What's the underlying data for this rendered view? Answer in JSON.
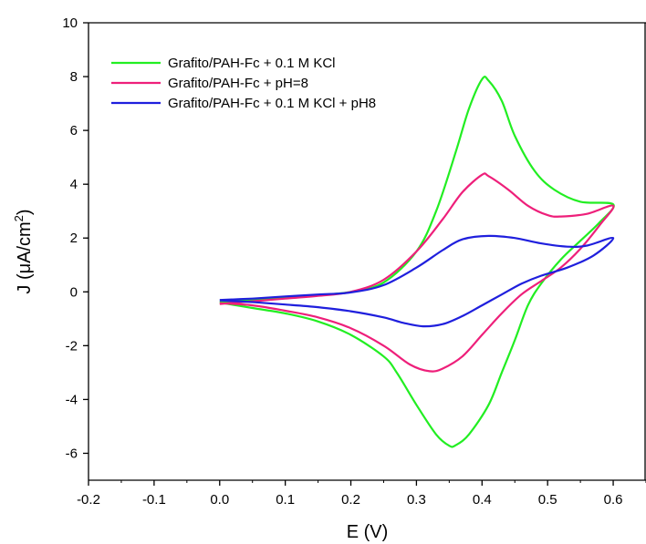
{
  "chart_data": {
    "type": "line",
    "title": "",
    "xlabel": "E (V)",
    "ylabel": {
      "main": "J (μA/cm",
      "sup": "2",
      "close": ")"
    },
    "xlim": [
      -0.2,
      0.65
    ],
    "ylim": [
      -7,
      10
    ],
    "xticks": [
      {
        "value": -0.2,
        "label": "-0.2"
      },
      {
        "value": -0.1,
        "label": "-0.1"
      },
      {
        "value": 0.0,
        "label": "0.0"
      },
      {
        "value": 0.1,
        "label": "0.1"
      },
      {
        "value": 0.2,
        "label": "0.2"
      },
      {
        "value": 0.3,
        "label": "0.3"
      },
      {
        "value": 0.4,
        "label": "0.4"
      },
      {
        "value": 0.5,
        "label": "0.5"
      },
      {
        "value": 0.6,
        "label": "0.6"
      }
    ],
    "yticks": [
      {
        "value": -6,
        "label": "-6"
      },
      {
        "value": -4,
        "label": "-4"
      },
      {
        "value": -2,
        "label": "-2"
      },
      {
        "value": 0,
        "label": "0"
      },
      {
        "value": 2,
        "label": "2"
      },
      {
        "value": 4,
        "label": "4"
      },
      {
        "value": 6,
        "label": "6"
      },
      {
        "value": 8,
        "label": "8"
      },
      {
        "value": 10,
        "label": "10"
      }
    ],
    "grid": false,
    "legend_position": "top-left",
    "series": [
      {
        "name": "Grafito/PAH-Fc + 0.1 M KCl",
        "color": "#22ee22",
        "points": [
          [
            0.0,
            -0.38
          ],
          [
            0.05,
            -0.3
          ],
          [
            0.1,
            -0.2
          ],
          [
            0.15,
            -0.12
          ],
          [
            0.2,
            0.0
          ],
          [
            0.25,
            0.35
          ],
          [
            0.3,
            1.5
          ],
          [
            0.33,
            3.0
          ],
          [
            0.36,
            5.2
          ],
          [
            0.38,
            6.8
          ],
          [
            0.4,
            7.9
          ],
          [
            0.41,
            7.85
          ],
          [
            0.43,
            7.1
          ],
          [
            0.45,
            5.8
          ],
          [
            0.48,
            4.5
          ],
          [
            0.51,
            3.8
          ],
          [
            0.55,
            3.35
          ],
          [
            0.6,
            3.25
          ],
          [
            0.58,
            2.6
          ],
          [
            0.55,
            1.9
          ],
          [
            0.52,
            1.2
          ],
          [
            0.49,
            0.3
          ],
          [
            0.47,
            -0.5
          ],
          [
            0.45,
            -1.8
          ],
          [
            0.43,
            -3.0
          ],
          [
            0.41,
            -4.2
          ],
          [
            0.38,
            -5.3
          ],
          [
            0.36,
            -5.7
          ],
          [
            0.35,
            -5.72
          ],
          [
            0.33,
            -5.3
          ],
          [
            0.3,
            -4.2
          ],
          [
            0.27,
            -3.0
          ],
          [
            0.25,
            -2.4
          ],
          [
            0.2,
            -1.6
          ],
          [
            0.15,
            -1.1
          ],
          [
            0.1,
            -0.8
          ],
          [
            0.05,
            -0.6
          ],
          [
            0.0,
            -0.4
          ]
        ]
      },
      {
        "name": "Grafito/PAH-Fc + pH=8",
        "color": "#ee1f7a",
        "points": [
          [
            0.0,
            -0.45
          ],
          [
            0.05,
            -0.35
          ],
          [
            0.1,
            -0.25
          ],
          [
            0.15,
            -0.15
          ],
          [
            0.2,
            0.0
          ],
          [
            0.25,
            0.45
          ],
          [
            0.3,
            1.5
          ],
          [
            0.34,
            2.7
          ],
          [
            0.37,
            3.7
          ],
          [
            0.4,
            4.35
          ],
          [
            0.41,
            4.3
          ],
          [
            0.44,
            3.8
          ],
          [
            0.47,
            3.2
          ],
          [
            0.5,
            2.85
          ],
          [
            0.52,
            2.8
          ],
          [
            0.56,
            2.9
          ],
          [
            0.6,
            3.2
          ],
          [
            0.58,
            2.5
          ],
          [
            0.55,
            1.6
          ],
          [
            0.52,
            0.9
          ],
          [
            0.49,
            0.4
          ],
          [
            0.46,
            -0.1
          ],
          [
            0.43,
            -0.8
          ],
          [
            0.4,
            -1.6
          ],
          [
            0.37,
            -2.4
          ],
          [
            0.34,
            -2.85
          ],
          [
            0.32,
            -2.95
          ],
          [
            0.29,
            -2.7
          ],
          [
            0.25,
            -2.0
          ],
          [
            0.2,
            -1.35
          ],
          [
            0.15,
            -0.95
          ],
          [
            0.1,
            -0.7
          ],
          [
            0.05,
            -0.5
          ],
          [
            0.0,
            -0.42
          ]
        ]
      },
      {
        "name": "Grafito/PAH-Fc + 0.1 M KCl + pH8",
        "color": "#1f1fdd",
        "points": [
          [
            0.0,
            -0.3
          ],
          [
            0.05,
            -0.25
          ],
          [
            0.1,
            -0.17
          ],
          [
            0.15,
            -0.1
          ],
          [
            0.2,
            -0.02
          ],
          [
            0.25,
            0.25
          ],
          [
            0.3,
            0.9
          ],
          [
            0.34,
            1.55
          ],
          [
            0.37,
            1.95
          ],
          [
            0.41,
            2.08
          ],
          [
            0.45,
            2.0
          ],
          [
            0.49,
            1.8
          ],
          [
            0.53,
            1.68
          ],
          [
            0.56,
            1.72
          ],
          [
            0.6,
            2.0
          ],
          [
            0.57,
            1.35
          ],
          [
            0.53,
            0.9
          ],
          [
            0.49,
            0.6
          ],
          [
            0.46,
            0.3
          ],
          [
            0.43,
            -0.1
          ],
          [
            0.4,
            -0.5
          ],
          [
            0.37,
            -0.9
          ],
          [
            0.34,
            -1.2
          ],
          [
            0.31,
            -1.28
          ],
          [
            0.28,
            -1.15
          ],
          [
            0.25,
            -0.95
          ],
          [
            0.2,
            -0.72
          ],
          [
            0.15,
            -0.57
          ],
          [
            0.1,
            -0.47
          ],
          [
            0.05,
            -0.38
          ],
          [
            0.0,
            -0.32
          ]
        ]
      }
    ]
  }
}
